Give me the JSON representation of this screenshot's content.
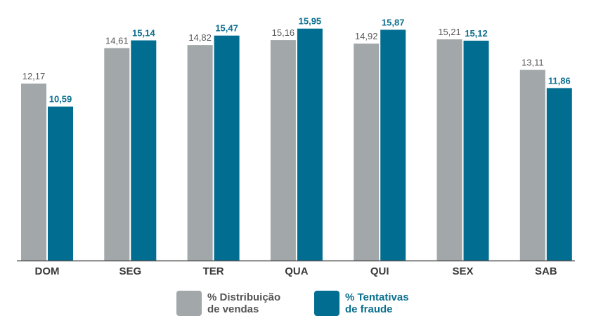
{
  "chart_data": {
    "type": "bar",
    "categories": [
      "DOM",
      "SEG",
      "TER",
      "QUA",
      "QUI",
      "SEX",
      "SAB"
    ],
    "series": [
      {
        "name": "% Distribuição de vendas",
        "name_lines": [
          "% Distribuição",
          "de vendas"
        ],
        "color": "#a2a7a9",
        "label_color": "#5a5a5a",
        "values": [
          12.17,
          14.61,
          14.82,
          15.16,
          14.92,
          15.21,
          13.11
        ],
        "labels": [
          "12,17",
          "14,61",
          "14,82",
          "15,16",
          "14,92",
          "15,21",
          "13,11"
        ]
      },
      {
        "name": "% Tentativas de fraude",
        "name_lines": [
          "% Tentativas",
          "de fraude"
        ],
        "color": "#006d91",
        "label_color": "#0b6f8f",
        "values": [
          10.59,
          15.14,
          15.47,
          15.95,
          15.87,
          15.12,
          11.86
        ],
        "labels": [
          "10,59",
          "15,14",
          "15,47",
          "15,95",
          "15,87",
          "15,12",
          "11,86"
        ]
      }
    ],
    "ylim": [
      0,
      17
    ],
    "grid": false,
    "legend_position": "bottom",
    "title": "",
    "xlabel": "",
    "ylabel": ""
  }
}
